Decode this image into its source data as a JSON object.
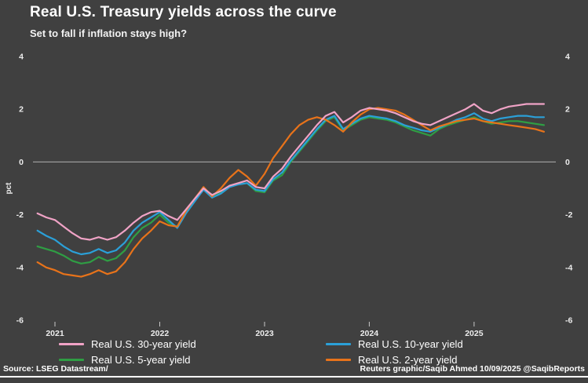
{
  "footer": {
    "source": "Source: LSEG Datastream/",
    "credit": "Reuters graphic/Saqib Ahmed 10/09/2025 @SaqibReports"
  },
  "colors": {
    "background": "#404040",
    "zero_line": "#9a9a9a",
    "axis_text": "#ededed",
    "bottom_rule": "#ffffff"
  },
  "chart_data": {
    "type": "line",
    "title": "Real U.S. Treasury yields across the curve",
    "subtitle": "Set to fall if inflation stays high?",
    "ylabel": "pct",
    "ylim": [
      -6,
      4
    ],
    "yticks": [
      4,
      2,
      0,
      -2,
      -4,
      -6
    ],
    "xlim": [
      2020.79,
      2025.78
    ],
    "xticks": [
      2021,
      2022,
      2023,
      2024,
      2025
    ],
    "zero_line": true,
    "grid": false,
    "legend_position": "bottom",
    "draw_order": [
      2,
      1,
      3,
      0
    ],
    "x": [
      2020.833,
      2020.917,
      2021.0,
      2021.083,
      2021.167,
      2021.25,
      2021.333,
      2021.417,
      2021.5,
      2021.583,
      2021.667,
      2021.75,
      2021.833,
      2021.917,
      2022.0,
      2022.083,
      2022.167,
      2022.25,
      2022.333,
      2022.417,
      2022.5,
      2022.583,
      2022.667,
      2022.75,
      2022.833,
      2022.917,
      2023.0,
      2023.083,
      2023.167,
      2023.25,
      2023.333,
      2023.417,
      2023.5,
      2023.583,
      2023.667,
      2023.75,
      2023.833,
      2023.917,
      2024.0,
      2024.083,
      2024.167,
      2024.25,
      2024.333,
      2024.417,
      2024.5,
      2024.583,
      2024.667,
      2024.75,
      2024.833,
      2024.917,
      2025.0,
      2025.083,
      2025.167,
      2025.25,
      2025.333,
      2025.417,
      2025.5,
      2025.583,
      2025.667
    ],
    "series": [
      {
        "name": "Real U.S. 30-year yield",
        "color": "#f0a3c6",
        "values": [
          -1.95,
          -2.1,
          -2.2,
          -2.45,
          -2.7,
          -2.9,
          -2.95,
          -2.85,
          -2.95,
          -2.85,
          -2.6,
          -2.3,
          -2.05,
          -1.9,
          -1.85,
          -2.05,
          -2.2,
          -1.8,
          -1.4,
          -1.0,
          -1.25,
          -1.1,
          -0.9,
          -0.8,
          -0.7,
          -0.95,
          -1.0,
          -0.55,
          -0.25,
          0.2,
          0.6,
          1.0,
          1.4,
          1.75,
          1.9,
          1.5,
          1.7,
          1.95,
          2.05,
          2.0,
          1.95,
          1.85,
          1.7,
          1.55,
          1.45,
          1.4,
          1.55,
          1.7,
          1.85,
          2.0,
          2.2,
          1.95,
          1.85,
          2.0,
          2.1,
          2.15,
          2.2,
          2.2,
          2.2
        ]
      },
      {
        "name": "Real U.S. 10-year yield",
        "color": "#2ba0d8",
        "values": [
          -2.6,
          -2.8,
          -2.95,
          -3.2,
          -3.4,
          -3.5,
          -3.45,
          -3.3,
          -3.45,
          -3.35,
          -3.05,
          -2.6,
          -2.3,
          -2.1,
          -1.9,
          -2.2,
          -2.5,
          -1.95,
          -1.5,
          -1.05,
          -1.35,
          -1.2,
          -0.95,
          -0.85,
          -0.8,
          -1.05,
          -1.1,
          -0.65,
          -0.4,
          0.05,
          0.45,
          0.85,
          1.25,
          1.6,
          1.75,
          1.25,
          1.45,
          1.65,
          1.75,
          1.7,
          1.65,
          1.55,
          1.4,
          1.3,
          1.2,
          1.15,
          1.3,
          1.45,
          1.6,
          1.7,
          1.85,
          1.65,
          1.55,
          1.65,
          1.7,
          1.75,
          1.75,
          1.7,
          1.7
        ]
      },
      {
        "name": "Real U.S. 5-year yield",
        "color": "#2f9e44",
        "values": [
          -3.2,
          -3.3,
          -3.4,
          -3.55,
          -3.75,
          -3.85,
          -3.8,
          -3.6,
          -3.75,
          -3.65,
          -3.35,
          -2.85,
          -2.5,
          -2.3,
          -2.0,
          -2.3,
          -2.45,
          -1.9,
          -1.45,
          -1.0,
          -1.35,
          -1.15,
          -0.9,
          -0.85,
          -0.8,
          -1.1,
          -1.15,
          -0.7,
          -0.5,
          0.0,
          0.4,
          0.8,
          1.2,
          1.55,
          1.7,
          1.2,
          1.4,
          1.6,
          1.7,
          1.65,
          1.6,
          1.5,
          1.35,
          1.2,
          1.1,
          1.0,
          1.25,
          1.4,
          1.5,
          1.6,
          1.7,
          1.55,
          1.45,
          1.5,
          1.55,
          1.55,
          1.5,
          1.45,
          1.4
        ]
      },
      {
        "name": "Real U.S. 2-year yield",
        "color": "#e8731a",
        "values": [
          -3.8,
          -4.0,
          -4.1,
          -4.25,
          -4.3,
          -4.35,
          -4.25,
          -4.1,
          -4.25,
          -4.15,
          -3.8,
          -3.3,
          -2.9,
          -2.6,
          -2.25,
          -2.4,
          -2.45,
          -1.85,
          -1.4,
          -0.95,
          -1.3,
          -1.0,
          -0.6,
          -0.3,
          -0.55,
          -0.9,
          -0.45,
          0.15,
          0.6,
          1.05,
          1.4,
          1.6,
          1.7,
          1.6,
          1.4,
          1.15,
          1.5,
          1.8,
          2.0,
          2.05,
          2.0,
          1.95,
          1.8,
          1.6,
          1.4,
          1.2,
          1.35,
          1.45,
          1.55,
          1.6,
          1.65,
          1.55,
          1.5,
          1.45,
          1.4,
          1.35,
          1.3,
          1.25,
          1.15
        ]
      }
    ]
  }
}
